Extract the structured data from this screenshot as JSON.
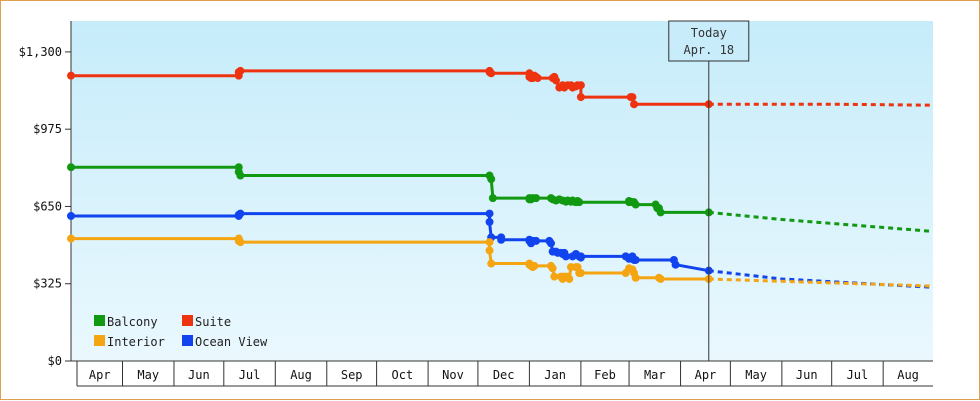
{
  "chart_data": {
    "type": "line",
    "title": "",
    "xlabel": "",
    "ylabel": "",
    "ylim": [
      0,
      1430
    ],
    "y_ticks": [
      0,
      325,
      650,
      975,
      1300
    ],
    "y_tick_labels": [
      "$0",
      "$325",
      "$650",
      "$975",
      "$1,300"
    ],
    "x_range": [
      "2023-03-31",
      "2024-08-31"
    ],
    "months": [
      {
        "label": "Apr",
        "start": "2023-04-01"
      },
      {
        "label": "May",
        "start": "2023-05-01"
      },
      {
        "label": "Jun",
        "start": "2023-06-01"
      },
      {
        "label": "Jul",
        "start": "2023-07-01"
      },
      {
        "label": "Aug",
        "start": "2023-08-01"
      },
      {
        "label": "Sep",
        "start": "2023-09-01"
      },
      {
        "label": "Oct",
        "start": "2023-10-01"
      },
      {
        "label": "Nov",
        "start": "2023-11-01"
      },
      {
        "label": "Dec",
        "start": "2023-12-01"
      },
      {
        "label": "Jan",
        "start": "2024-01-01"
      },
      {
        "label": "Feb",
        "start": "2024-02-01"
      },
      {
        "label": "Mar",
        "start": "2024-03-01"
      },
      {
        "label": "Apr",
        "start": "2024-04-01"
      },
      {
        "label": "May",
        "start": "2024-05-01"
      },
      {
        "label": "Jun",
        "start": "2024-06-01"
      },
      {
        "label": "Jul",
        "start": "2024-07-01"
      },
      {
        "label": "Aug",
        "start": "2024-08-01"
      }
    ],
    "today": {
      "line1": "Today",
      "line2": "Apr. 18",
      "date": "2024-04-18"
    },
    "legend_position": "bottom-left",
    "grid": false,
    "series": [
      {
        "name": "Suite",
        "color": "#ee3311",
        "points": [
          [
            "2023-03-31",
            1200
          ],
          [
            "2023-07-10",
            1200
          ],
          [
            "2023-07-10",
            1215
          ],
          [
            "2023-07-11",
            1220
          ],
          [
            "2023-12-08",
            1220
          ],
          [
            "2023-12-08",
            1215
          ],
          [
            "2023-12-09",
            1210
          ],
          [
            "2024-01-01",
            1210
          ],
          [
            "2024-01-01",
            1195
          ],
          [
            "2024-01-02",
            1190
          ],
          [
            "2024-01-03",
            1190
          ],
          [
            "2024-01-04",
            1200
          ],
          [
            "2024-01-05",
            1195
          ],
          [
            "2024-01-06",
            1190
          ],
          [
            "2024-01-15",
            1190
          ],
          [
            "2024-01-16",
            1195
          ],
          [
            "2024-01-17",
            1180
          ],
          [
            "2024-01-19",
            1150
          ],
          [
            "2024-01-21",
            1160
          ],
          [
            "2024-01-22",
            1150
          ],
          [
            "2024-01-24",
            1160
          ],
          [
            "2024-01-26",
            1160
          ],
          [
            "2024-01-27",
            1150
          ],
          [
            "2024-01-28",
            1155
          ],
          [
            "2024-01-29",
            1155
          ],
          [
            "2024-01-30",
            1160
          ],
          [
            "2024-02-01",
            1160
          ],
          [
            "2024-02-01",
            1110
          ],
          [
            "2024-03-02",
            1110
          ],
          [
            "2024-03-03",
            1110
          ],
          [
            "2024-03-04",
            1080
          ],
          [
            "2024-04-18",
            1080
          ]
        ],
        "forecast": [
          [
            "2024-04-18",
            1080
          ],
          [
            "2024-07-01",
            1080
          ],
          [
            "2024-08-31",
            1076
          ]
        ]
      },
      {
        "name": "Balcony",
        "color": "#119911",
        "points": [
          [
            "2023-03-31",
            815
          ],
          [
            "2023-07-10",
            815
          ],
          [
            "2023-07-10",
            795
          ],
          [
            "2023-07-11",
            780
          ],
          [
            "2023-12-08",
            780
          ],
          [
            "2023-12-09",
            765
          ],
          [
            "2023-12-10",
            685
          ],
          [
            "2024-01-01",
            685
          ],
          [
            "2024-01-01",
            680
          ],
          [
            "2024-01-02",
            680
          ],
          [
            "2024-01-03",
            685
          ],
          [
            "2024-01-05",
            685
          ],
          [
            "2024-01-14",
            685
          ],
          [
            "2024-01-15",
            680
          ],
          [
            "2024-01-17",
            675
          ],
          [
            "2024-01-19",
            680
          ],
          [
            "2024-01-21",
            675
          ],
          [
            "2024-01-23",
            670
          ],
          [
            "2024-01-24",
            675
          ],
          [
            "2024-01-26",
            670
          ],
          [
            "2024-01-27",
            675
          ],
          [
            "2024-01-28",
            670
          ],
          [
            "2024-01-29",
            668
          ],
          [
            "2024-01-30",
            673
          ],
          [
            "2024-01-31",
            668
          ],
          [
            "2024-03-01",
            668
          ],
          [
            "2024-03-01",
            673
          ],
          [
            "2024-03-03",
            668
          ],
          [
            "2024-03-04",
            668
          ],
          [
            "2024-03-05",
            658
          ],
          [
            "2024-03-17",
            658
          ],
          [
            "2024-03-18",
            643
          ],
          [
            "2024-03-19",
            643
          ],
          [
            "2024-03-20",
            625
          ],
          [
            "2024-04-18",
            625
          ]
        ],
        "forecast": [
          [
            "2024-04-18",
            625
          ],
          [
            "2024-06-01",
            595
          ],
          [
            "2024-08-31",
            545
          ]
        ]
      },
      {
        "name": "Ocean View",
        "color": "#1144ee",
        "points": [
          [
            "2023-03-31",
            610
          ],
          [
            "2023-07-10",
            610
          ],
          [
            "2023-07-10",
            615
          ],
          [
            "2023-07-11",
            620
          ],
          [
            "2023-12-08",
            620
          ],
          [
            "2023-12-08",
            585
          ],
          [
            "2023-12-09",
            520
          ],
          [
            "2023-12-15",
            520
          ],
          [
            "2023-12-15",
            510
          ],
          [
            "2024-01-01",
            510
          ],
          [
            "2024-01-01",
            505
          ],
          [
            "2024-01-02",
            495
          ],
          [
            "2024-01-03",
            505
          ],
          [
            "2024-01-05",
            505
          ],
          [
            "2024-01-13",
            505
          ],
          [
            "2024-01-14",
            495
          ],
          [
            "2024-01-15",
            460
          ],
          [
            "2024-01-17",
            460
          ],
          [
            "2024-01-18",
            455
          ],
          [
            "2024-01-20",
            455
          ],
          [
            "2024-01-21",
            450
          ],
          [
            "2024-01-22",
            455
          ],
          [
            "2024-01-23",
            440
          ],
          [
            "2024-01-27",
            440
          ],
          [
            "2024-01-29",
            450
          ],
          [
            "2024-01-31",
            440
          ],
          [
            "2024-02-01",
            435
          ],
          [
            "2024-02-01",
            440
          ],
          [
            "2024-02-28",
            440
          ],
          [
            "2024-03-01",
            430
          ],
          [
            "2024-03-03",
            440
          ],
          [
            "2024-03-04",
            425
          ],
          [
            "2024-03-05",
            425
          ],
          [
            "2024-03-28",
            425
          ],
          [
            "2024-03-29",
            405
          ],
          [
            "2024-04-18",
            380
          ]
        ],
        "forecast": [
          [
            "2024-04-18",
            380
          ],
          [
            "2024-06-01",
            345
          ],
          [
            "2024-08-31",
            310
          ]
        ]
      },
      {
        "name": "Interior",
        "color": "#f5a511",
        "points": [
          [
            "2023-03-31",
            515
          ],
          [
            "2023-07-10",
            515
          ],
          [
            "2023-07-10",
            505
          ],
          [
            "2023-07-11",
            500
          ],
          [
            "2023-12-08",
            500
          ],
          [
            "2023-12-08",
            465
          ],
          [
            "2023-12-09",
            410
          ],
          [
            "2024-01-01",
            410
          ],
          [
            "2024-01-01",
            405
          ],
          [
            "2024-01-02",
            400
          ],
          [
            "2024-01-03",
            395
          ],
          [
            "2024-01-04",
            400
          ],
          [
            "2024-01-14",
            400
          ],
          [
            "2024-01-15",
            390
          ],
          [
            "2024-01-16",
            355
          ],
          [
            "2024-01-20",
            355
          ],
          [
            "2024-01-21",
            345
          ],
          [
            "2024-01-22",
            355
          ],
          [
            "2024-01-24",
            355
          ],
          [
            "2024-01-25",
            345
          ],
          [
            "2024-01-26",
            395
          ],
          [
            "2024-01-29",
            395
          ],
          [
            "2024-01-30",
            395
          ],
          [
            "2024-01-31",
            370
          ],
          [
            "2024-02-01",
            370
          ],
          [
            "2024-02-28",
            370
          ],
          [
            "2024-03-01",
            390
          ],
          [
            "2024-03-03",
            385
          ],
          [
            "2024-03-04",
            370
          ],
          [
            "2024-03-05",
            350
          ],
          [
            "2024-03-19",
            350
          ],
          [
            "2024-03-20",
            345
          ],
          [
            "2024-04-18",
            345
          ]
        ],
        "forecast": [
          [
            "2024-04-18",
            345
          ],
          [
            "2024-06-01",
            335
          ],
          [
            "2024-08-31",
            315
          ]
        ]
      }
    ],
    "legend_order": [
      "Balcony",
      "Suite",
      "Interior",
      "Ocean View"
    ]
  }
}
